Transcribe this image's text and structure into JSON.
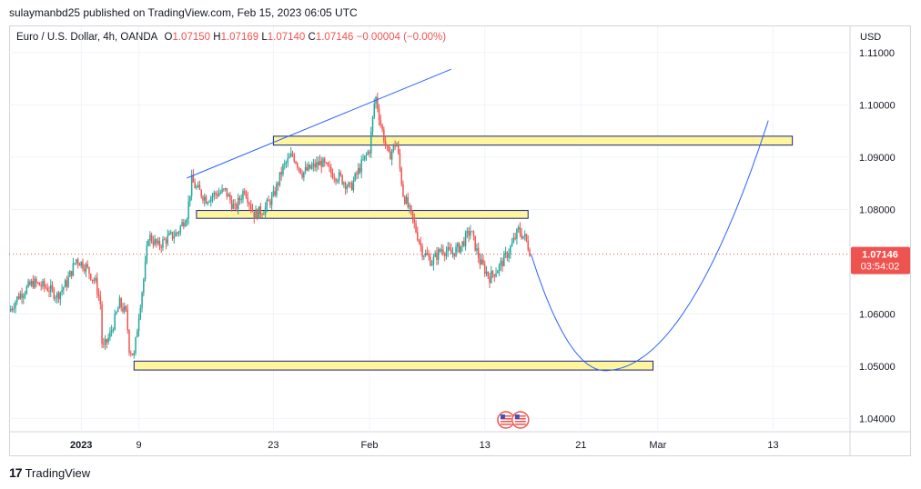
{
  "header": {
    "publisher": "sulaymanbd25 published on TradingView.com, Feb 15, 2023 06:05 UTC"
  },
  "legend": {
    "symbol": "Euro / U.S. Dollar, 4h, OANDA",
    "open_label": "O",
    "open": "1.07150",
    "high_label": "H",
    "high": "1.07169",
    "low_label": "L",
    "low": "1.07140",
    "close_label": "C",
    "close": "1.07146",
    "change": "−0.00004 (−0.00%)"
  },
  "axis": {
    "currency": "USD"
  },
  "price_label": {
    "price": "1.07146",
    "countdown": "03:54:02"
  },
  "footer": {
    "brand": "TradingView",
    "logo_icon": "tradingview-logo-icon"
  },
  "colors": {
    "up": "#26a69a",
    "down": "#ef5350",
    "drawing": "#2962ff",
    "zone_fill": "#fff59d",
    "zone_border": "#1a237e"
  },
  "chart_data": {
    "type": "candlestick",
    "symbol": "Euro / U.S. Dollar",
    "interval": "4h",
    "y_range": [
      1.0375,
      1.115
    ],
    "y_ticks": [
      "1.11000",
      "1.10000",
      "1.09000",
      "1.08000",
      "1.07146",
      "1.06000",
      "1.05000",
      "1.04000"
    ],
    "x_ticks": [
      "2023",
      "9",
      "23",
      "Feb",
      "13",
      "21",
      "Mar",
      "13"
    ],
    "x_tick_values": [
      0,
      6,
      20,
      30,
      42,
      52,
      60,
      72
    ],
    "x_unit": "days since Jan 2 2023",
    "x_range": [
      -7.5,
      80
    ],
    "price_path": [
      [
        -7.5,
        1.0605
      ],
      [
        -6.5,
        1.0635
      ],
      [
        -5,
        1.066
      ],
      [
        -3.5,
        1.065
      ],
      [
        -2.5,
        1.0635
      ],
      [
        -1.5,
        1.066
      ],
      [
        -0.5,
        1.0705
      ],
      [
        0.5,
        1.069
      ],
      [
        1.5,
        1.066
      ],
      [
        2,
        1.062
      ],
      [
        2.2,
        1.053
      ],
      [
        3,
        1.056
      ],
      [
        4,
        1.062
      ],
      [
        4.7,
        1.06
      ],
      [
        5,
        1.0535
      ],
      [
        5.5,
        1.052
      ],
      [
        6,
        1.06
      ],
      [
        6.6,
        1.068
      ],
      [
        7,
        1.075
      ],
      [
        8,
        1.073
      ],
      [
        9,
        1.0745
      ],
      [
        10,
        1.0755
      ],
      [
        11,
        1.079
      ],
      [
        11.5,
        1.0855
      ],
      [
        12,
        1.084
      ],
      [
        13,
        1.082
      ],
      [
        14,
        1.083
      ],
      [
        15,
        1.0835
      ],
      [
        16,
        1.08
      ],
      [
        17,
        1.084
      ],
      [
        18,
        1.079
      ],
      [
        19,
        1.08
      ],
      [
        20,
        1.0825
      ],
      [
        21,
        1.088
      ],
      [
        22,
        1.0905
      ],
      [
        23,
        1.087
      ],
      [
        24,
        1.088
      ],
      [
        25,
        1.089
      ],
      [
        26,
        1.087
      ],
      [
        27,
        1.086
      ],
      [
        28,
        1.084
      ],
      [
        29,
        1.088
      ],
      [
        30,
        1.0915
      ],
      [
        30.6,
        1.102
      ],
      [
        31.2,
        1.096
      ],
      [
        32,
        1.09
      ],
      [
        32.8,
        1.093
      ],
      [
        33.5,
        1.083
      ],
      [
        34.5,
        1.078
      ],
      [
        35.5,
        1.072
      ],
      [
        36.5,
        1.07
      ],
      [
        37.5,
        1.0725
      ],
      [
        38.5,
        1.0715
      ],
      [
        39.5,
        1.073
      ],
      [
        40.5,
        1.076
      ],
      [
        41.5,
        1.07
      ],
      [
        42.5,
        1.067
      ],
      [
        43.5,
        1.069
      ],
      [
        44.5,
        1.072
      ],
      [
        45.5,
        1.076
      ],
      [
        46.2,
        1.0745
      ],
      [
        46.8,
        1.0715
      ]
    ],
    "annotations": {
      "zones": [
        {
          "from": 20,
          "to": 74,
          "y_low": 1.0923,
          "y_high": 1.094
        },
        {
          "from": 12,
          "to": 46.5,
          "y_low": 1.0783,
          "y_high": 1.0798
        },
        {
          "from": 5.5,
          "to": 59.5,
          "y_low": 1.0493,
          "y_high": 1.051
        }
      ],
      "trendline": [
        [
          11,
          1.086
        ],
        [
          38.5,
          1.1068
        ]
      ],
      "projection": [
        [
          46.8,
          1.0715
        ],
        [
          54.5,
          1.0492
        ],
        [
          71.5,
          1.097
        ]
      ],
      "events": [
        {
          "x": 44.2,
          "icon": "us-flag-icon"
        },
        {
          "x": 45.7,
          "icon": "us-flag-icon"
        }
      ]
    }
  }
}
